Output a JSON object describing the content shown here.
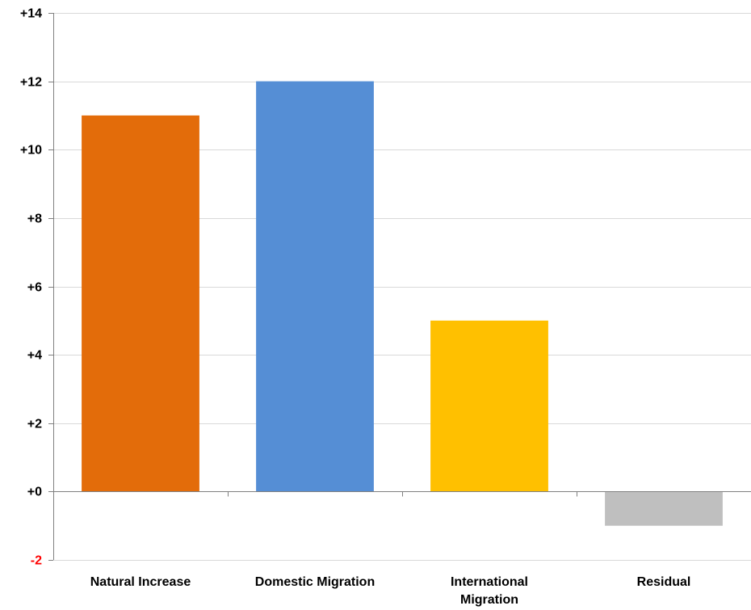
{
  "chart_data": {
    "type": "bar",
    "categories": [
      "Natural Increase",
      "Domestic Migration",
      "International Migration",
      "Residual"
    ],
    "category_lines": [
      [
        "Natural Increase"
      ],
      [
        "Domestic Migration"
      ],
      [
        "International",
        "Migration"
      ],
      [
        "Residual"
      ]
    ],
    "values": [
      11,
      12,
      5,
      -1
    ],
    "bar_colors": [
      "#e36c0a",
      "#558ed5",
      "#ffc000",
      "#bfbfbf"
    ],
    "ylim": [
      -2,
      14
    ],
    "yticks": [
      -2,
      0,
      2,
      4,
      6,
      8,
      10,
      12,
      14
    ],
    "ytick_labels": [
      "-2",
      "+0",
      "+2",
      "+4",
      "+6",
      "+8",
      "+10",
      "+12",
      "+14"
    ],
    "negative_tick_color": "#ff0000",
    "tick_color": "#000000",
    "grid": true,
    "grid_color": "#d9d9d9",
    "title": "",
    "xlabel": "",
    "ylabel": ""
  }
}
